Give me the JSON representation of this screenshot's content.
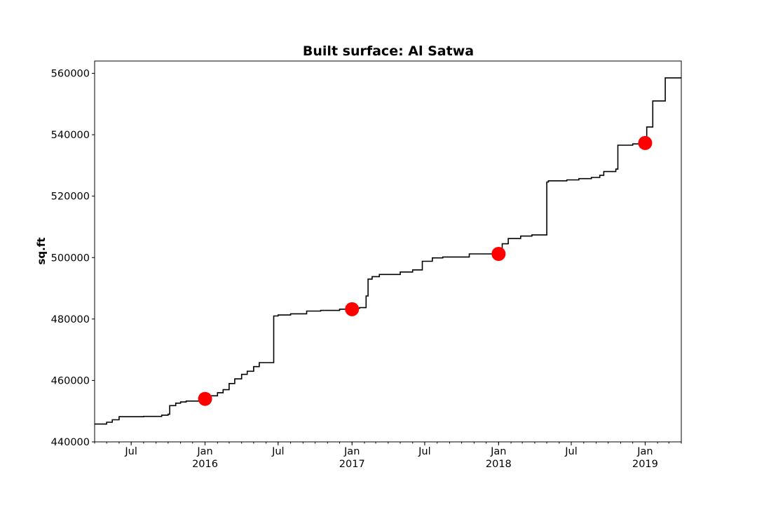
{
  "chart_data": {
    "type": "line",
    "title": "Built surface: Al Satwa",
    "xlabel": "",
    "ylabel": "sq.ft",
    "xlim": [
      "2015-04-01",
      "2019-04-01"
    ],
    "ylim": [
      440000,
      564000
    ],
    "y_ticks": [
      440000,
      460000,
      480000,
      500000,
      520000,
      540000,
      560000
    ],
    "x_ticks": [
      {
        "date": "2015-07-01",
        "label": "Jul",
        "year": ""
      },
      {
        "date": "2016-01-01",
        "label": "Jan",
        "year": "2016"
      },
      {
        "date": "2016-07-01",
        "label": "Jul",
        "year": ""
      },
      {
        "date": "2017-01-01",
        "label": "Jan",
        "year": "2017"
      },
      {
        "date": "2017-07-01",
        "label": "Jul",
        "year": ""
      },
      {
        "date": "2018-01-01",
        "label": "Jan",
        "year": "2018"
      },
      {
        "date": "2018-07-01",
        "label": "Jul",
        "year": ""
      },
      {
        "date": "2019-01-01",
        "label": "Jan",
        "year": "2019"
      }
    ],
    "grid": false,
    "series": [
      {
        "line_color": "#000000",
        "step": true,
        "points": [
          [
            "2015-04-01",
            445800
          ],
          [
            "2015-05-01",
            446400
          ],
          [
            "2015-05-15",
            447200
          ],
          [
            "2015-06-01",
            448200
          ],
          [
            "2015-08-01",
            448300
          ],
          [
            "2015-09-15",
            448700
          ],
          [
            "2015-10-01",
            449000
          ],
          [
            "2015-10-05",
            451800
          ],
          [
            "2015-10-20",
            452600
          ],
          [
            "2015-11-01",
            453000
          ],
          [
            "2015-11-15",
            453300
          ],
          [
            "2016-01-01",
            453500
          ],
          [
            "2016-01-15",
            455000
          ],
          [
            "2016-02-01",
            456000
          ],
          [
            "2016-02-15",
            457000
          ],
          [
            "2016-03-01",
            459000
          ],
          [
            "2016-03-15",
            460500
          ],
          [
            "2016-04-01",
            462000
          ],
          [
            "2016-04-15",
            463000
          ],
          [
            "2016-05-01",
            464500
          ],
          [
            "2016-05-15",
            465800
          ],
          [
            "2016-06-20",
            481000
          ],
          [
            "2016-07-01",
            481300
          ],
          [
            "2016-08-01",
            481700
          ],
          [
            "2016-09-10",
            482600
          ],
          [
            "2016-10-15",
            482800
          ],
          [
            "2016-12-01",
            483200
          ],
          [
            "2017-01-01",
            483500
          ],
          [
            "2017-01-20",
            483700
          ],
          [
            "2017-02-05",
            487500
          ],
          [
            "2017-02-10",
            493000
          ],
          [
            "2017-02-20",
            493800
          ],
          [
            "2017-03-10",
            494500
          ],
          [
            "2017-05-01",
            495300
          ],
          [
            "2017-06-01",
            496000
          ],
          [
            "2017-06-25",
            498800
          ],
          [
            "2017-07-20",
            499900
          ],
          [
            "2017-08-15",
            500200
          ],
          [
            "2017-10-20",
            501200
          ],
          [
            "2017-12-20",
            501300
          ],
          [
            "2018-01-01",
            503000
          ],
          [
            "2018-01-10",
            504500
          ],
          [
            "2018-01-25",
            506200
          ],
          [
            "2018-02-25",
            507000
          ],
          [
            "2018-03-25",
            507400
          ],
          [
            "2018-05-01",
            524600
          ],
          [
            "2018-05-05",
            525000
          ],
          [
            "2018-06-20",
            525300
          ],
          [
            "2018-07-20",
            525700
          ],
          [
            "2018-08-20",
            526100
          ],
          [
            "2018-09-10",
            526800
          ],
          [
            "2018-09-20",
            528000
          ],
          [
            "2018-10-20",
            528800
          ],
          [
            "2018-10-25",
            536600
          ],
          [
            "2018-12-01",
            537000
          ],
          [
            "2019-01-03",
            537500
          ],
          [
            "2019-01-05",
            542500
          ],
          [
            "2019-01-20",
            551000
          ],
          [
            "2019-02-20",
            558500
          ],
          [
            "2019-04-01",
            558500
          ]
        ]
      },
      {
        "marker_color": "#ff0000",
        "markers_only": true,
        "points": [
          [
            "2016-01-01",
            454000
          ],
          [
            "2017-01-01",
            483200
          ],
          [
            "2018-01-01",
            501200
          ],
          [
            "2019-01-01",
            537300
          ]
        ]
      }
    ]
  }
}
